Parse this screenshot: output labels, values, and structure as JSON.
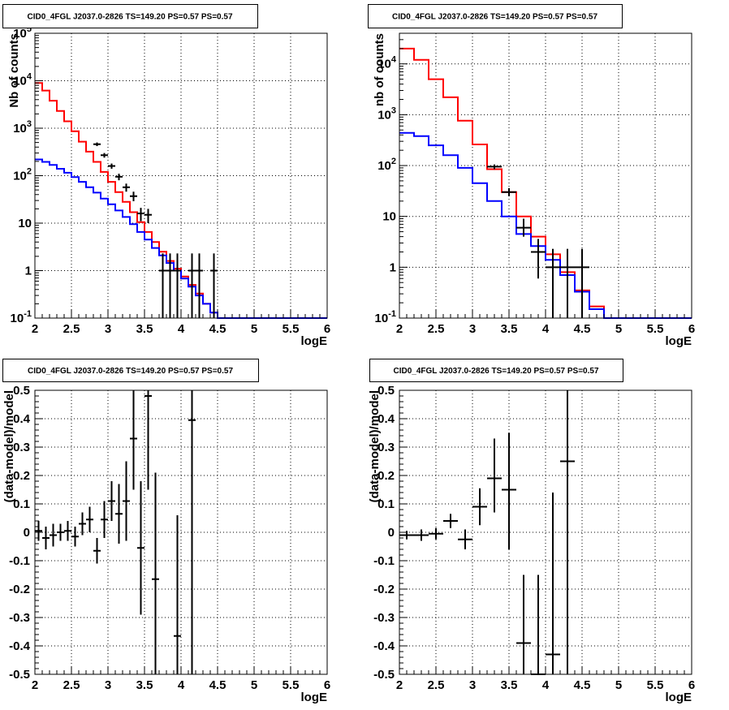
{
  "chart_data": [
    {
      "type": "histogram",
      "title": "CID0_4FGL J2037.0-2826 TS=149.20 PS=0.57 PS=0.57",
      "xlabel": "logE",
      "ylabel": "Nb of counts",
      "xlim": [
        2,
        6
      ],
      "ylim": [
        0.1,
        100000
      ],
      "yscale": "log",
      "grid": true,
      "x_ticks": [
        "2",
        "2.5",
        "3",
        "3.5",
        "4",
        "4.5",
        "5",
        "5.5",
        "6"
      ],
      "y_ticks": [
        "10^-1",
        "1",
        "10",
        "10^2",
        "10^3",
        "10^4",
        "10^5"
      ],
      "bin_edges": [
        2.0,
        2.1,
        2.2,
        2.3,
        2.4,
        2.5,
        2.6,
        2.7,
        2.8,
        2.9,
        3.0,
        3.1,
        3.2,
        3.3,
        3.4,
        3.5,
        3.6,
        3.7,
        3.8,
        3.9,
        4.0,
        4.1,
        4.2,
        4.3,
        4.4,
        4.5,
        4.6,
        4.7,
        4.8,
        4.9,
        5.0,
        5.1,
        5.2,
        5.3,
        5.4,
        5.5,
        5.6,
        5.7,
        5.8,
        5.9,
        6.0
      ],
      "series": [
        {
          "color": "#ff0000",
          "values": [
            9000,
            6200,
            3800,
            2300,
            1400,
            860,
            520,
            320,
            195,
            120,
            74,
            45,
            28,
            17,
            10.5,
            6.5,
            4.0,
            2.5,
            1.6,
            1.1,
            0.75,
            0.5,
            0.33,
            0.2,
            0.13,
            0.1,
            0.1,
            0.1,
            0.1,
            0.1,
            0.1,
            0.1,
            0.1,
            0.1,
            0.1,
            0.1,
            0.1,
            0.1,
            0.1,
            0.1
          ]
        },
        {
          "color": "#0000ff",
          "values": [
            220,
            195,
            168,
            140,
            115,
            93,
            74,
            57,
            44,
            33,
            25,
            18.5,
            13.5,
            9.5,
            6.5,
            4.5,
            3.0,
            2.1,
            1.45,
            1.0,
            0.68,
            0.46,
            0.3,
            0.2,
            0.13,
            0.1,
            0.1,
            0.1,
            0.1,
            0.1,
            0.1,
            0.1,
            0.1,
            0.1,
            0.1,
            0.1,
            0.1,
            0.1,
            0.1,
            0.1
          ]
        }
      ],
      "data_points": [
        {
          "x": 2.85,
          "y": 460,
          "lo": 420,
          "hi": 500
        },
        {
          "x": 2.95,
          "y": 270,
          "lo": 240,
          "hi": 300
        },
        {
          "x": 3.05,
          "y": 160,
          "lo": 140,
          "hi": 180
        },
        {
          "x": 3.15,
          "y": 95,
          "lo": 80,
          "hi": 110
        },
        {
          "x": 3.25,
          "y": 57,
          "lo": 46,
          "hi": 68
        },
        {
          "x": 3.35,
          "y": 37,
          "lo": 29,
          "hi": 46
        },
        {
          "x": 3.45,
          "y": 16,
          "lo": 11,
          "hi": 21
        },
        {
          "x": 3.55,
          "y": 15,
          "lo": 10,
          "hi": 20
        },
        {
          "x": 3.75,
          "y": 1,
          "lo": 0.1,
          "hi": 2.3
        },
        {
          "x": 3.85,
          "y": 1,
          "lo": 0.1,
          "hi": 2.3
        },
        {
          "x": 3.95,
          "y": 1,
          "lo": 0.1,
          "hi": 2.3
        },
        {
          "x": 4.15,
          "y": 1,
          "lo": 0.1,
          "hi": 2.3
        },
        {
          "x": 4.25,
          "y": 1,
          "lo": 0.1,
          "hi": 2.3
        },
        {
          "x": 4.45,
          "y": 1,
          "lo": 0.1,
          "hi": 2.3
        }
      ],
      "data_halfwidth": 0.05
    },
    {
      "type": "histogram",
      "title": "CID0_4FGL J2037.0-2826 TS=149.20 PS=0.57 PS=0.57",
      "xlabel": "logE",
      "ylabel": "nb of counts",
      "xlim": [
        2,
        6
      ],
      "ylim": [
        0.1,
        40000
      ],
      "yscale": "log",
      "grid": true,
      "x_ticks": [
        "2",
        "2.5",
        "3",
        "3.5",
        "4",
        "4.5",
        "5",
        "5.5",
        "6"
      ],
      "y_ticks": [
        "10^-1",
        "1",
        "10",
        "10^2",
        "10^3",
        "10^4"
      ],
      "bin_edges": [
        2.0,
        2.2,
        2.4,
        2.6,
        2.8,
        3.0,
        3.2,
        3.4,
        3.6,
        3.8,
        4.0,
        4.2,
        4.4,
        4.6,
        4.8,
        5.0,
        5.2,
        5.4,
        5.6,
        5.8,
        6.0
      ],
      "series": [
        {
          "color": "#ff0000",
          "values": [
            20000,
            12000,
            5000,
            2200,
            760,
            260,
            85,
            30,
            10,
            4.0,
            1.8,
            0.8,
            0.35,
            0.17,
            0.1,
            0.1,
            0.1,
            0.1,
            0.1,
            0.1
          ]
        },
        {
          "color": "#0000ff",
          "values": [
            440,
            380,
            250,
            160,
            90,
            45,
            20,
            10,
            4.5,
            2.6,
            1.4,
            0.7,
            0.33,
            0.15,
            0.1,
            0.1,
            0.1,
            0.1,
            0.1,
            0.1
          ]
        }
      ],
      "data_points": [
        {
          "x": 3.3,
          "y": 95,
          "lo": 85,
          "hi": 105
        },
        {
          "x": 3.5,
          "y": 30,
          "lo": 25,
          "hi": 36
        },
        {
          "x": 3.7,
          "y": 6,
          "lo": 4,
          "hi": 9
        },
        {
          "x": 3.9,
          "y": 2,
          "lo": 0.6,
          "hi": 3.6
        },
        {
          "x": 4.1,
          "y": 1,
          "lo": 0.1,
          "hi": 2.3
        },
        {
          "x": 4.3,
          "y": 1,
          "lo": 0.1,
          "hi": 2.3
        },
        {
          "x": 4.5,
          "y": 1,
          "lo": 0.1,
          "hi": 2.3
        }
      ],
      "data_halfwidth": 0.1
    },
    {
      "type": "scatter",
      "title": "CID0_4FGL J2037.0-2826 TS=149.20 PS=0.57 PS=0.57",
      "xlabel": "logE",
      "ylabel": "(data-model)/model",
      "xlim": [
        2,
        6
      ],
      "ylim": [
        -0.5,
        0.5
      ],
      "yscale": "linear",
      "grid": true,
      "x_ticks": [
        "2",
        "2.5",
        "3",
        "3.5",
        "4",
        "4.5",
        "5",
        "5.5",
        "6"
      ],
      "y_ticks": [
        "-0.5",
        "-0.4",
        "-0.3",
        "-0.2",
        "-0.1",
        "0",
        "0.1",
        "0.2",
        "0.3",
        "0.4",
        "0.5"
      ],
      "data_points": [
        {
          "x": 2.05,
          "y": 0.005,
          "lo": -0.03,
          "hi": 0.04
        },
        {
          "x": 2.15,
          "y": -0.02,
          "lo": -0.06,
          "hi": 0.02
        },
        {
          "x": 2.25,
          "y": -0.01,
          "lo": -0.05,
          "hi": 0.03
        },
        {
          "x": 2.35,
          "y": 0.0,
          "lo": -0.03,
          "hi": 0.03
        },
        {
          "x": 2.45,
          "y": 0.005,
          "lo": -0.03,
          "hi": 0.04
        },
        {
          "x": 2.55,
          "y": -0.015,
          "lo": -0.05,
          "hi": 0.02
        },
        {
          "x": 2.65,
          "y": 0.03,
          "lo": -0.01,
          "hi": 0.07
        },
        {
          "x": 2.75,
          "y": 0.045,
          "lo": 0.0,
          "hi": 0.09
        },
        {
          "x": 2.85,
          "y": -0.065,
          "lo": -0.11,
          "hi": -0.02
        },
        {
          "x": 2.95,
          "y": 0.045,
          "lo": -0.02,
          "hi": 0.11
        },
        {
          "x": 3.05,
          "y": 0.11,
          "lo": 0.04,
          "hi": 0.18
        },
        {
          "x": 3.15,
          "y": 0.065,
          "lo": -0.04,
          "hi": 0.17
        },
        {
          "x": 3.25,
          "y": 0.11,
          "lo": -0.03,
          "hi": 0.25
        },
        {
          "x": 3.35,
          "y": 0.33,
          "lo": 0.15,
          "hi": 0.5
        },
        {
          "x": 3.45,
          "y": -0.055,
          "lo": -0.29,
          "hi": 0.18
        },
        {
          "x": 3.55,
          "y": 0.48,
          "lo": 0.15,
          "hi": 0.5
        },
        {
          "x": 3.65,
          "y": -0.165,
          "lo": -0.5,
          "hi": 0.21
        },
        {
          "x": 3.95,
          "y": -0.365,
          "lo": -0.5,
          "hi": 0.06
        },
        {
          "x": 4.15,
          "y": 0.395,
          "lo": -0.5,
          "hi": 0.5
        }
      ],
      "data_halfwidth": 0.05
    },
    {
      "type": "scatter",
      "title": "CID0_4FGL J2037.0-2826 TS=149.20 PS=0.57 PS=0.57",
      "xlabel": "logE",
      "ylabel": "(data-model)/model",
      "xlim": [
        2,
        6
      ],
      "ylim": [
        -0.5,
        0.5
      ],
      "yscale": "linear",
      "grid": true,
      "x_ticks": [
        "2",
        "2.5",
        "3",
        "3.5",
        "4",
        "4.5",
        "5",
        "5.5",
        "6"
      ],
      "y_ticks": [
        "-0.5",
        "-0.4",
        "-0.3",
        "-0.2",
        "-0.1",
        "0",
        "0.1",
        "0.2",
        "0.3",
        "0.4",
        "0.5"
      ],
      "data_points": [
        {
          "x": 2.1,
          "y": -0.01,
          "lo": -0.025,
          "hi": 0.005
        },
        {
          "x": 2.3,
          "y": -0.01,
          "lo": -0.03,
          "hi": 0.01
        },
        {
          "x": 2.5,
          "y": -0.005,
          "lo": -0.025,
          "hi": 0.015
        },
        {
          "x": 2.7,
          "y": 0.04,
          "lo": 0.015,
          "hi": 0.065
        },
        {
          "x": 2.9,
          "y": -0.025,
          "lo": -0.06,
          "hi": 0.01
        },
        {
          "x": 3.1,
          "y": 0.09,
          "lo": 0.025,
          "hi": 0.155
        },
        {
          "x": 3.3,
          "y": 0.19,
          "lo": 0.07,
          "hi": 0.33
        },
        {
          "x": 3.5,
          "y": 0.15,
          "lo": -0.06,
          "hi": 0.35
        },
        {
          "x": 3.7,
          "y": -0.39,
          "lo": -0.5,
          "hi": -0.15
        },
        {
          "x": 3.9,
          "y": -0.5,
          "lo": -0.5,
          "hi": -0.15
        },
        {
          "x": 4.1,
          "y": -0.43,
          "lo": -0.5,
          "hi": 0.14
        },
        {
          "x": 4.3,
          "y": 0.25,
          "lo": -0.5,
          "hi": 0.5
        }
      ],
      "data_halfwidth": 0.1
    }
  ]
}
